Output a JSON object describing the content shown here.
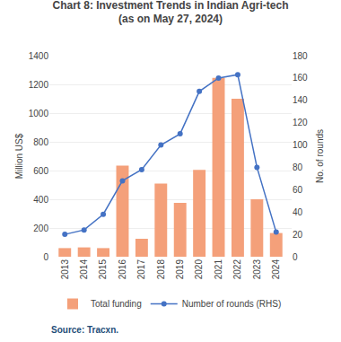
{
  "chart_data": {
    "type": "bar",
    "title": "Chart 8: Investment Trends in Indian Agri-tech",
    "subtitle": "(as on May 27, 2024)",
    "ylabel": "Million US$",
    "y2label": "No. of rounds",
    "annotations": [
      "Source: Tracxn."
    ],
    "categories": [
      "2013",
      "2014",
      "2015",
      "2016",
      "2017",
      "2018",
      "2019",
      "2020",
      "2021",
      "2022",
      "2023",
      "2024"
    ],
    "series": [
      {
        "name": "Total funding",
        "type": "bar",
        "color": "#F4A07A",
        "values": [
          60,
          65,
          60,
          635,
          125,
          510,
          375,
          605,
          1245,
          1100,
          400,
          165
        ]
      },
      {
        "name": "Number of rounds (RHS)",
        "type": "line",
        "color": "#4472C4",
        "marker": "circle",
        "axis": "y2",
        "values": [
          20,
          24,
          38,
          68,
          78,
          100,
          110,
          148,
          160,
          163,
          80,
          22
        ]
      }
    ],
    "ylim": [
      0,
      1400
    ],
    "yticks": [
      0,
      200,
      400,
      600,
      800,
      1000,
      1200,
      1400
    ],
    "y2lim": [
      0,
      180
    ],
    "y2ticks": [
      0,
      20,
      40,
      60,
      80,
      100,
      120,
      140,
      160,
      180
    ],
    "grid": true,
    "legend": "bottom"
  }
}
